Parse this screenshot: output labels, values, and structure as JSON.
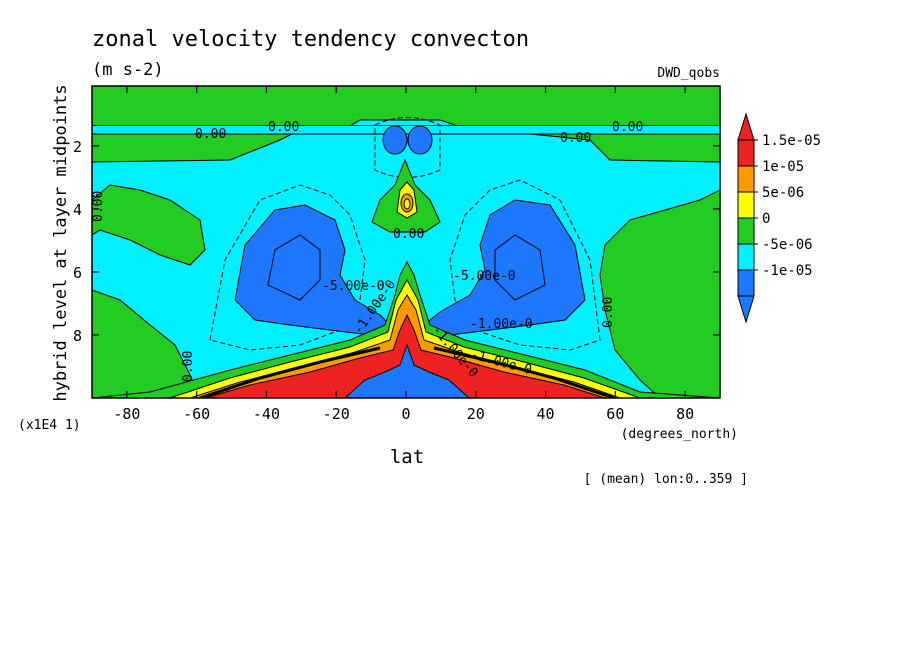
{
  "chart_data": {
    "type": "heatmap",
    "subtype": "filled-contour",
    "title": "zonal velocity tendency convecton",
    "units": "(m s-2)",
    "dataset": "DWD_qobs",
    "xlabel": "lat",
    "xunits": "(degrees_north)",
    "ylabel": "hybrid level at layer midpoints",
    "yscale_note": "(x1E4 1)",
    "footer": "[ (mean) lon:0..359 ]",
    "xlim": [
      -90,
      90
    ],
    "ylim": [
      10,
      0.1
    ],
    "xticks": [
      -80,
      -60,
      -40,
      -20,
      0,
      20,
      40,
      60,
      80
    ],
    "yticks": [
      2,
      4,
      6,
      8
    ],
    "colorbar": {
      "colors": [
        "#1e78ff",
        "#00f0ff",
        "#22cc22",
        "#ffff00",
        "#ff9900",
        "#ee2222"
      ],
      "labels": [
        "1.5e-05",
        "1e-05",
        "5e-06",
        "0",
        "-5e-06",
        "-1e-05"
      ],
      "extend": "both"
    },
    "contour_labels": [
      "0.00",
      "0.00",
      "0.00",
      "0.00",
      "0.00",
      "0.00",
      "0.00",
      "0.00",
      "-5.00e-0",
      "-5.00e-0",
      "-1.00e-0",
      "-1.00e-0",
      "-1.00e-0",
      "-1.00e-0"
    ]
  }
}
